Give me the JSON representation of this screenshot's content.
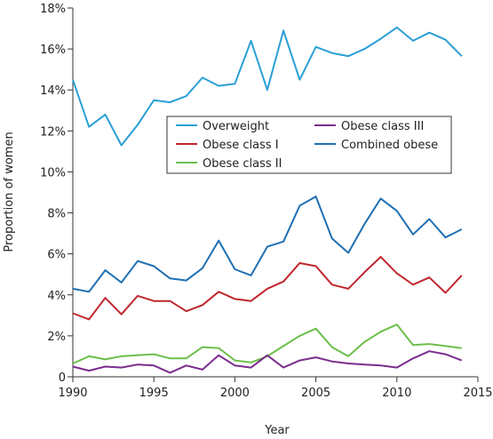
{
  "chart_data": {
    "type": "line",
    "xlabel": "Year",
    "ylabel": "Proportion of women",
    "xlim": [
      1990,
      2015
    ],
    "ylim": [
      0,
      18
    ],
    "x_ticks": [
      1990,
      1995,
      2000,
      2005,
      2010,
      2015
    ],
    "y_ticks": [
      {
        "value": 0,
        "label": "0"
      },
      {
        "value": 2,
        "label": "2%"
      },
      {
        "value": 4,
        "label": "4%"
      },
      {
        "value": 6,
        "label": "6%"
      },
      {
        "value": 8,
        "label": "8%"
      },
      {
        "value": 10,
        "label": "10%"
      },
      {
        "value": 12,
        "label": "12%"
      },
      {
        "value": 14,
        "label": "14%"
      },
      {
        "value": 16,
        "label": "16%"
      },
      {
        "value": 18,
        "label": "18%"
      }
    ],
    "legend_position": "center",
    "x": [
      1990,
      1991,
      1992,
      1993,
      1994,
      1995,
      1996,
      1997,
      1998,
      1999,
      2000,
      2001,
      2002,
      2003,
      2004,
      2005,
      2006,
      2007,
      2008,
      2009,
      2010,
      2011,
      2012,
      2013,
      2014
    ],
    "series": [
      {
        "name": "Overweight",
        "color": "#2a9fd6",
        "values": [
          14.5,
          12.2,
          12.8,
          11.3,
          12.3,
          13.5,
          13.4,
          13.7,
          14.6,
          14.2,
          14.3,
          16.4,
          14.0,
          16.9,
          14.5,
          16.1,
          15.8,
          15.65,
          16.0,
          16.5,
          17.05,
          16.4,
          16.8,
          16.45,
          15.65
        ]
      },
      {
        "name": "Obese class I",
        "color": "#c0272d",
        "values": [
          3.1,
          2.8,
          3.85,
          3.05,
          3.95,
          3.7,
          3.7,
          3.2,
          3.5,
          4.15,
          3.8,
          3.7,
          4.3,
          4.65,
          5.55,
          5.4,
          4.5,
          4.3,
          5.1,
          5.85,
          5.05,
          4.5,
          4.85,
          4.1,
          4.95
        ]
      },
      {
        "name": "Obese class II",
        "color": "#6cbf4a",
        "values": [
          0.65,
          1.0,
          0.85,
          1.0,
          1.05,
          1.1,
          0.9,
          0.9,
          1.45,
          1.4,
          0.8,
          0.7,
          1.0,
          1.5,
          2.0,
          2.35,
          1.45,
          1.0,
          1.7,
          2.2,
          2.55,
          1.55,
          1.6,
          1.5,
          1.4
        ]
      },
      {
        "name": "Obese class III",
        "color": "#7b2d8e",
        "values": [
          0.5,
          0.3,
          0.5,
          0.45,
          0.6,
          0.55,
          0.2,
          0.55,
          0.35,
          1.05,
          0.55,
          0.45,
          1.05,
          0.45,
          0.8,
          0.95,
          0.75,
          0.65,
          0.6,
          0.55,
          0.45,
          0.9,
          1.25,
          1.1,
          0.8
        ]
      },
      {
        "name": "Combined obese",
        "color": "#1f6fb2",
        "values": [
          4.3,
          4.15,
          5.2,
          4.6,
          5.65,
          5.4,
          4.8,
          4.7,
          5.3,
          6.65,
          5.25,
          4.95,
          6.35,
          6.6,
          8.35,
          8.8,
          6.75,
          6.05,
          7.45,
          8.7,
          8.1,
          6.95,
          7.7,
          6.8,
          7.2
        ]
      }
    ],
    "legend_layout": [
      [
        "Overweight",
        "Obese class III"
      ],
      [
        "Obese class I",
        "Combined obese"
      ],
      [
        "Obese class II",
        ""
      ]
    ]
  }
}
